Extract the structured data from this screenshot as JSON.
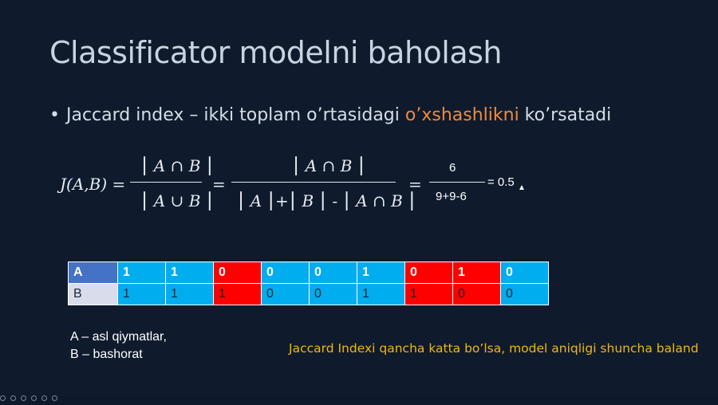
{
  "slide": {
    "title": "Classificator modelni baholash",
    "bullet": {
      "dot": "•",
      "before": "Jaccard index – ikki toplam o’rtasidagi ",
      "highlight": "o’xshashlikni",
      "after": " ko’rsatadi"
    },
    "formula": {
      "lhs": "J(A,B) =",
      "f1_num": "⎮ A ∩ B ⎮",
      "f1_den": "⎮ A ∪ B ⎮",
      "eq1": "=",
      "f2_num": "⎮ A ∩ B ⎮",
      "f2_den": "⎮ A ⎮+⎮ B ⎮ - ⎮ A ∩ B ⎮",
      "eq2": "=",
      "f3_num": "6",
      "f3_den": "9+9-6",
      "result": "= 0.5"
    },
    "table": {
      "rows": [
        {
          "label": "A",
          "values": [
            "1",
            "1",
            "0",
            "0",
            "0",
            "1",
            "0",
            "1",
            "0"
          ],
          "colors": [
            "#00adee",
            "#00adee",
            "#ff0000",
            "#00adee",
            "#00adee",
            "#00adee",
            "#ff0000",
            "#ff0000",
            "#00adee"
          ],
          "label_color": "#4472c4"
        },
        {
          "label": "B",
          "values": [
            "1",
            "1",
            "1",
            "0",
            "0",
            "1",
            "1",
            "0",
            "0"
          ],
          "colors": [
            "#00adee",
            "#00adee",
            "#ff0000",
            "#00adee",
            "#00adee",
            "#00adee",
            "#ff0000",
            "#ff0000",
            "#00adee"
          ],
          "label_color": "#d9dcea"
        }
      ]
    },
    "legend": {
      "line1": "A – asl qiymatlar,",
      "line2": "B – bashorat"
    },
    "note": "Jaccard Indexi qancha katta bo’lsa, model aniqligi shuncha baland",
    "accent_colors": {
      "highlight": "#f08a3c",
      "note": "#f2b515",
      "background": "#0f1b2d"
    }
  }
}
